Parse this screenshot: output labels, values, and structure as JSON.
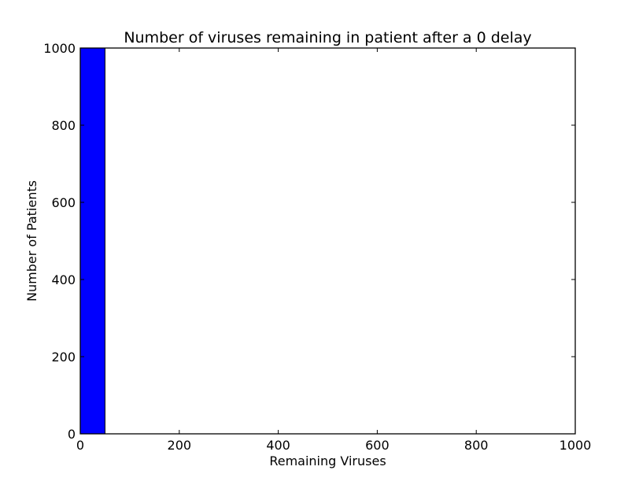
{
  "chart_data": {
    "type": "bar",
    "title": "Number of viruses remaining in patient after a 0 delay",
    "xlabel": "Remaining Viruses",
    "ylabel": "Number of Patients",
    "xlim": [
      0,
      1000
    ],
    "ylim": [
      0,
      1000
    ],
    "xticks": [
      0,
      200,
      400,
      600,
      800,
      1000
    ],
    "yticks": [
      0,
      200,
      400,
      600,
      800,
      1000
    ],
    "grid": false,
    "bins": [
      {
        "start": 0,
        "end": 50,
        "count": 1000
      }
    ],
    "colors": {
      "bar_fill": "#0000ff",
      "bar_edge": "#000000",
      "axes": "#000000",
      "background": "#ffffff"
    }
  }
}
